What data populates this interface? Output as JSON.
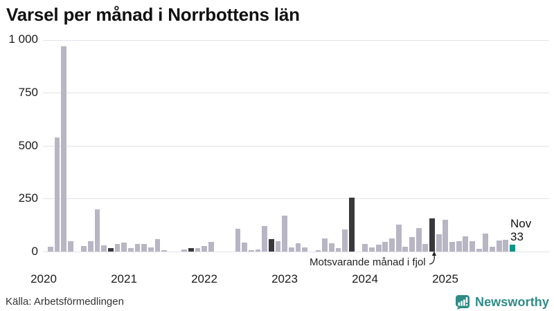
{
  "title": "Varsel per månad i Norrbottens län",
  "footer": {
    "source": "Källa: Arbetsförmedlingen",
    "logo_text": "Newsworthy"
  },
  "annotation": {
    "text": "Motsvarande månad i fjol"
  },
  "current_label": {
    "month": "Nov",
    "value": "33"
  },
  "colors": {
    "bar": "#b8b5c4",
    "highlight_dark": "#39393c",
    "highlight_current": "#0d9488",
    "grid": "#e2e2e9",
    "logo_teal": "#2e8b86"
  },
  "chart_data": {
    "type": "bar",
    "title": "Varsel per månad i Norrbottens län",
    "xlabel": "",
    "ylabel": "",
    "ylim": [
      0,
      1000
    ],
    "grid": true,
    "yticks": [
      "0",
      "250",
      "500",
      "750",
      "1 000"
    ],
    "xticks": [
      "2020",
      "2021",
      "2022",
      "2023",
      "2024",
      "2025"
    ],
    "start_month": "2020-01",
    "end_month": "2025-11",
    "series": [
      {
        "name": "Varsel per månad",
        "values": [
          0,
          22,
          540,
          970,
          50,
          0,
          25,
          50,
          200,
          30,
          18,
          36,
          41,
          16,
          36,
          36,
          20,
          60,
          7,
          0,
          0,
          10,
          16,
          18,
          25,
          45,
          0,
          0,
          0,
          107,
          42,
          8,
          9,
          122,
          60,
          50,
          170,
          20,
          38,
          20,
          0,
          8,
          63,
          40,
          16,
          104,
          255,
          0,
          35,
          21,
          32,
          46,
          62,
          127,
          24,
          68,
          111,
          37,
          157,
          81,
          150,
          46,
          49,
          71,
          48,
          14,
          85,
          23,
          52,
          56,
          33
        ]
      }
    ],
    "highlight_dark_indices": [
      10,
      22,
      34,
      46,
      58
    ],
    "highlight_dark_meaning": "November previous years (Motsvarande månad i fjol = index 58)",
    "current_index": 70,
    "current_value_label": "Nov 33"
  }
}
